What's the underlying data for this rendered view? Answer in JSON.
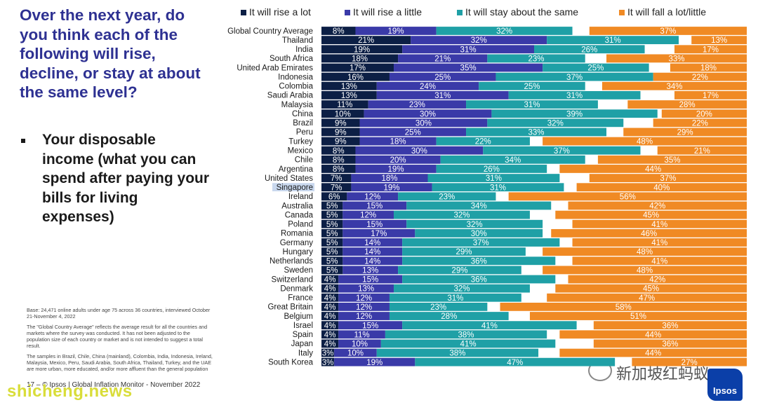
{
  "question": {
    "title": "Over the next year, do you think each of the following will rise, decline, or stay at about the same level?",
    "bullet": "Your disposable income (what you can spend after paying your bills for living expenses)"
  },
  "notes": {
    "base": "Base: 24,471 online adults under age 75 across 36 countries, interviewed October 21-November 4, 2022",
    "gca": "The \"Global Country Average\" reflects the average result for all the countries and markets where the survey was conducted. It has not been adjusted to the population size of each country or market and is not intended to suggest a total result.",
    "samples": "The samples in Brazil, Chile, China (mainland), Colombia, India, Indonesia, Ireland, Malaysia, Mexico, Peru, Saudi Arabia, South Africa, Thailand, Turkey, and the UAE are more urban, more educated, and/or more affluent than the general population"
  },
  "footer": {
    "page": "17",
    "text": "– © Ipsos | Global Inflation Monitor - November 2022"
  },
  "watermark": "shicheng.news",
  "wechat_label": "新加坡红蚂蚁",
  "logo_text": "Ipsos",
  "colors": {
    "title": "#2e3192",
    "rise_lot": "#0c1f45",
    "rise_little": "#3a3aa8",
    "same": "#1fa0a6",
    "fall": "#f08a24"
  },
  "chart_data": {
    "type": "bar",
    "orientation": "horizontal",
    "stacked": true,
    "legend_position": "top",
    "series": [
      {
        "name": "It will rise a lot",
        "color": "#0c1f45"
      },
      {
        "name": "It will rise a little",
        "color": "#3a3aa8"
      },
      {
        "name": "It will stay about the same",
        "color": "#1fa0a6"
      },
      {
        "name": "It will fall a lot/little",
        "color": "#f08a24"
      }
    ],
    "highlighted_category": "Singapore",
    "rows": [
      {
        "label": "Global Country Average",
        "values": [
          8,
          19,
          32,
          37
        ]
      },
      {
        "label": "Thailand",
        "values": [
          21,
          32,
          31,
          13
        ]
      },
      {
        "label": "India",
        "values": [
          19,
          31,
          26,
          17
        ]
      },
      {
        "label": "South Africa",
        "values": [
          18,
          21,
          23,
          33
        ]
      },
      {
        "label": "United Arab Emirates",
        "values": [
          17,
          35,
          25,
          18
        ]
      },
      {
        "label": "Indonesia",
        "values": [
          16,
          25,
          37,
          22
        ]
      },
      {
        "label": "Colombia",
        "values": [
          13,
          24,
          25,
          34
        ]
      },
      {
        "label": "Saudi Arabia",
        "values": [
          13,
          31,
          31,
          17
        ]
      },
      {
        "label": "Malaysia",
        "values": [
          11,
          23,
          31,
          28
        ]
      },
      {
        "label": "China",
        "values": [
          10,
          30,
          39,
          20
        ]
      },
      {
        "label": "Brazil",
        "values": [
          9,
          30,
          32,
          22
        ]
      },
      {
        "label": "Peru",
        "values": [
          9,
          25,
          33,
          29
        ]
      },
      {
        "label": "Turkey",
        "values": [
          9,
          18,
          22,
          48
        ]
      },
      {
        "label": "Mexico",
        "values": [
          8,
          30,
          37,
          21
        ]
      },
      {
        "label": "Chile",
        "values": [
          8,
          20,
          34,
          35
        ]
      },
      {
        "label": "Argentina",
        "values": [
          8,
          19,
          26,
          44
        ]
      },
      {
        "label": "United States",
        "values": [
          7,
          18,
          31,
          37
        ]
      },
      {
        "label": "Singapore",
        "values": [
          7,
          19,
          31,
          40
        ]
      },
      {
        "label": "Ireland",
        "values": [
          6,
          12,
          23,
          56
        ]
      },
      {
        "label": "Australia",
        "values": [
          5,
          15,
          34,
          42
        ]
      },
      {
        "label": "Canada",
        "values": [
          5,
          12,
          32,
          45
        ]
      },
      {
        "label": "Poland",
        "values": [
          5,
          15,
          32,
          41
        ]
      },
      {
        "label": "Romania",
        "values": [
          5,
          17,
          30,
          46
        ]
      },
      {
        "label": "Germany",
        "values": [
          5,
          14,
          37,
          41
        ]
      },
      {
        "label": "Hungary",
        "values": [
          5,
          14,
          29,
          48
        ]
      },
      {
        "label": "Netherlands",
        "values": [
          5,
          14,
          36,
          41
        ]
      },
      {
        "label": "Sweden",
        "values": [
          5,
          13,
          29,
          48
        ]
      },
      {
        "label": "Switzerland",
        "values": [
          4,
          15,
          36,
          42
        ]
      },
      {
        "label": "Denmark",
        "values": [
          4,
          13,
          32,
          45
        ]
      },
      {
        "label": "France",
        "values": [
          4,
          12,
          31,
          47
        ]
      },
      {
        "label": "Great Britain",
        "values": [
          4,
          12,
          23,
          58
        ]
      },
      {
        "label": "Belgium",
        "values": [
          4,
          12,
          28,
          51
        ]
      },
      {
        "label": "Israel",
        "values": [
          4,
          15,
          41,
          36
        ]
      },
      {
        "label": "Spain",
        "values": [
          4,
          11,
          38,
          44
        ]
      },
      {
        "label": "Japan",
        "values": [
          4,
          10,
          41,
          36
        ]
      },
      {
        "label": "Italy",
        "values": [
          3,
          10,
          38,
          44
        ]
      },
      {
        "label": "South Korea",
        "values": [
          3,
          19,
          47,
          27
        ]
      }
    ]
  }
}
